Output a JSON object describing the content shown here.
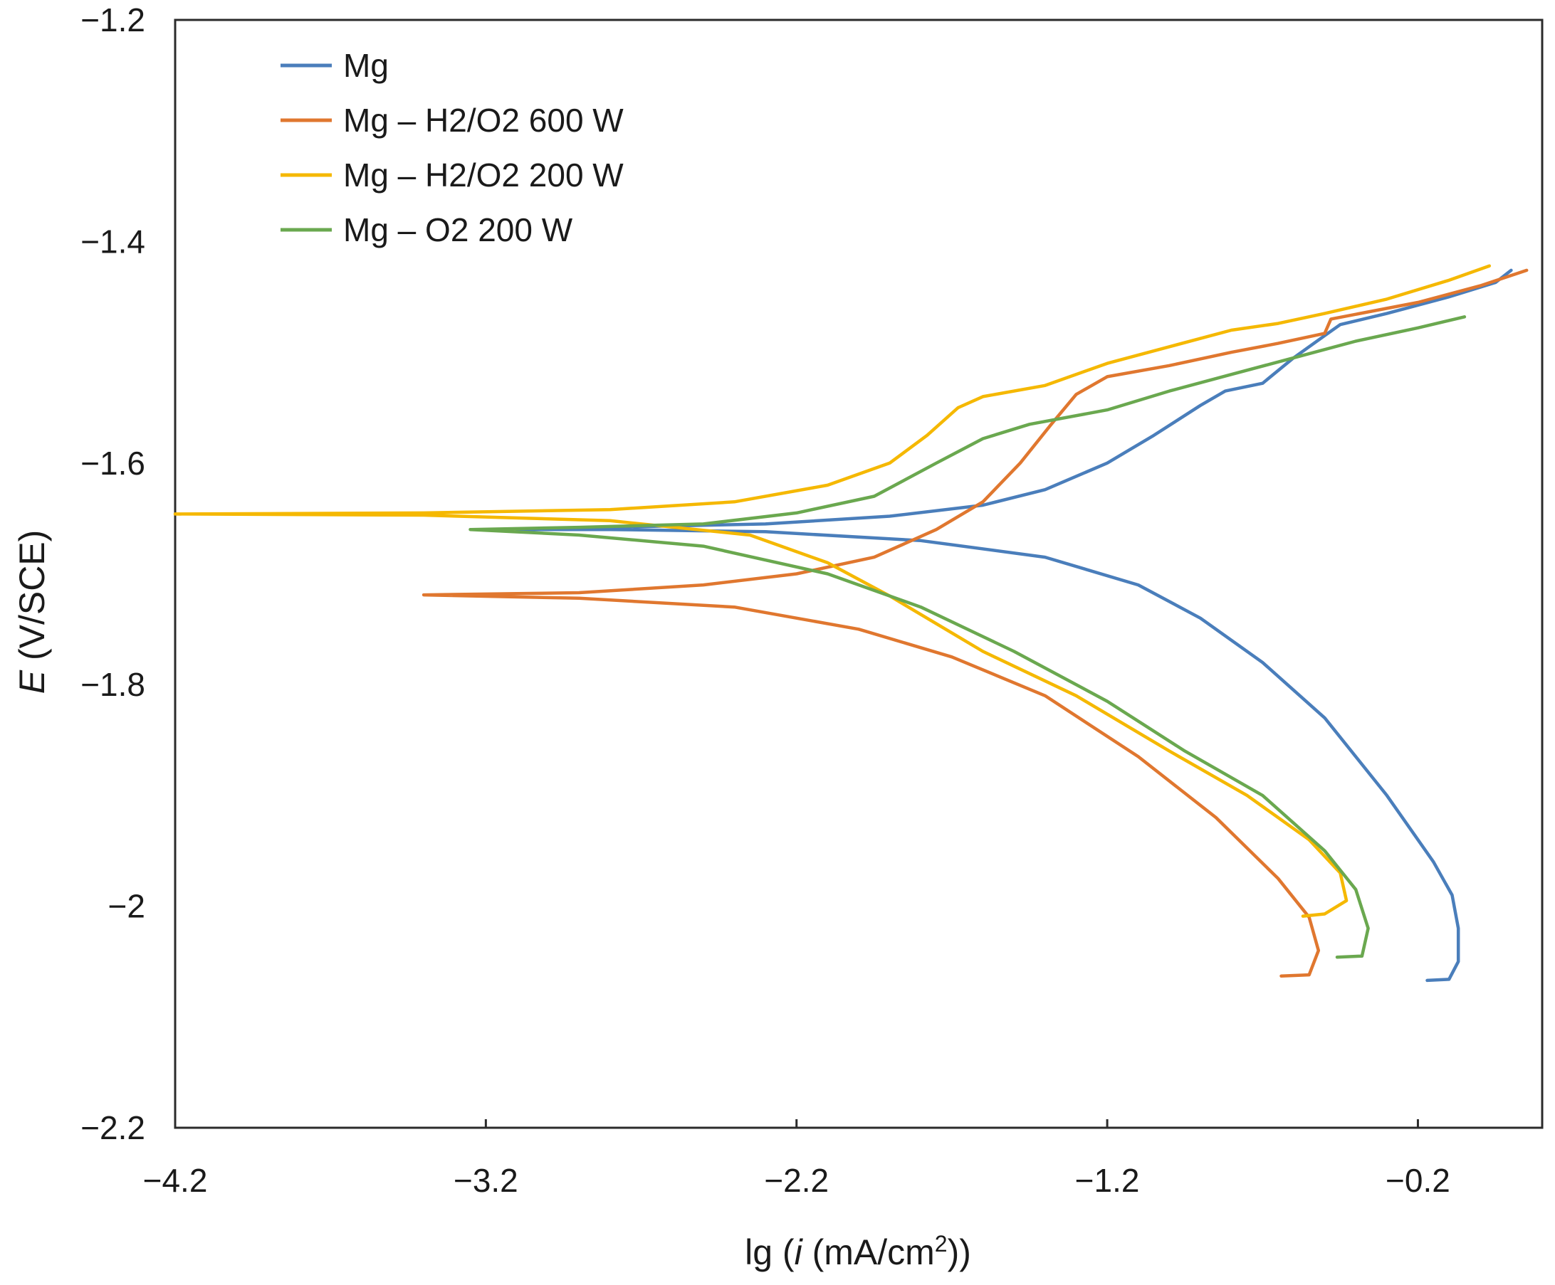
{
  "chart_data": {
    "type": "line",
    "title": "",
    "xlabel": {
      "prefix": "lg (",
      "italic": "i",
      "middle": " (mA/cm",
      "superscript": "2",
      "suffix": "))"
    },
    "ylabel": {
      "italic": "E",
      "rest": " (V/SCE)"
    },
    "xlim": [
      -4.2,
      0.2
    ],
    "ylim": [
      -2.2,
      -1.2
    ],
    "xticks": [
      {
        "value": -4.2,
        "label": "−4.2"
      },
      {
        "value": -3.2,
        "label": "−3.2"
      },
      {
        "value": -2.2,
        "label": "−2.2"
      },
      {
        "value": -1.2,
        "label": "−1.2"
      },
      {
        "value": -0.2,
        "label": "−0.2"
      }
    ],
    "yticks": [
      {
        "value": -1.2,
        "label": "−1.2"
      },
      {
        "value": -1.4,
        "label": "−1.4"
      },
      {
        "value": -1.6,
        "label": "−1.6"
      },
      {
        "value": -1.8,
        "label": "−1.8"
      },
      {
        "value": -2.0,
        "label": "−2"
      },
      {
        "value": -2.2,
        "label": "−2.2"
      }
    ],
    "grid": false,
    "legend_position": "top-left",
    "series": [
      {
        "name": "Mg",
        "color": "#4a7ebb",
        "points": [
          [
            -0.17,
            -2.067
          ],
          [
            -0.1,
            -2.066
          ],
          [
            -0.07,
            -2.05
          ],
          [
            -0.07,
            -2.02
          ],
          [
            -0.09,
            -1.99
          ],
          [
            -0.15,
            -1.96
          ],
          [
            -0.3,
            -1.9
          ],
          [
            -0.5,
            -1.83
          ],
          [
            -0.7,
            -1.78
          ],
          [
            -0.9,
            -1.74
          ],
          [
            -1.1,
            -1.71
          ],
          [
            -1.4,
            -1.685
          ],
          [
            -1.8,
            -1.67
          ],
          [
            -2.3,
            -1.662
          ],
          [
            -2.8,
            -1.66
          ],
          [
            -3.1,
            -1.66
          ],
          [
            -2.8,
            -1.658
          ],
          [
            -2.3,
            -1.655
          ],
          [
            -1.9,
            -1.648
          ],
          [
            -1.6,
            -1.638
          ],
          [
            -1.4,
            -1.624
          ],
          [
            -1.2,
            -1.6
          ],
          [
            -1.05,
            -1.575
          ],
          [
            -0.9,
            -1.548
          ],
          [
            -0.82,
            -1.535
          ],
          [
            -0.7,
            -1.528
          ],
          [
            -0.6,
            -1.505
          ],
          [
            -0.5,
            -1.485
          ],
          [
            -0.45,
            -1.475
          ],
          [
            -0.3,
            -1.465
          ],
          [
            -0.1,
            -1.45
          ],
          [
            0.05,
            -1.437
          ],
          [
            0.1,
            -1.426
          ]
        ]
      },
      {
        "name": "Mg – H2/O2 600 W",
        "color": "#e0772f",
        "points": [
          [
            -0.64,
            -2.063
          ],
          [
            -0.55,
            -2.062
          ],
          [
            -0.52,
            -2.04
          ],
          [
            -0.55,
            -2.01
          ],
          [
            -0.65,
            -1.975
          ],
          [
            -0.85,
            -1.92
          ],
          [
            -1.1,
            -1.865
          ],
          [
            -1.4,
            -1.81
          ],
          [
            -1.7,
            -1.775
          ],
          [
            -2.0,
            -1.75
          ],
          [
            -2.4,
            -1.73
          ],
          [
            -2.9,
            -1.722
          ],
          [
            -3.4,
            -1.719
          ],
          [
            -2.9,
            -1.717
          ],
          [
            -2.5,
            -1.71
          ],
          [
            -2.2,
            -1.7
          ],
          [
            -1.95,
            -1.685
          ],
          [
            -1.75,
            -1.66
          ],
          [
            -1.6,
            -1.635
          ],
          [
            -1.48,
            -1.6
          ],
          [
            -1.38,
            -1.565
          ],
          [
            -1.3,
            -1.538
          ],
          [
            -1.2,
            -1.522
          ],
          [
            -1.0,
            -1.512
          ],
          [
            -0.8,
            -1.5
          ],
          [
            -0.65,
            -1.492
          ],
          [
            -0.5,
            -1.483
          ],
          [
            -0.48,
            -1.47
          ],
          [
            -0.2,
            -1.455
          ],
          [
            0.0,
            -1.44
          ],
          [
            0.15,
            -1.426
          ]
        ]
      },
      {
        "name": "Mg – H2/O2 200 W",
        "color": "#f5b800",
        "points": [
          [
            -0.57,
            -2.009
          ],
          [
            -0.5,
            -2.007
          ],
          [
            -0.43,
            -1.995
          ],
          [
            -0.45,
            -1.97
          ],
          [
            -0.55,
            -1.94
          ],
          [
            -0.75,
            -1.9
          ],
          [
            -1.0,
            -1.86
          ],
          [
            -1.3,
            -1.81
          ],
          [
            -1.6,
            -1.77
          ],
          [
            -1.9,
            -1.72
          ],
          [
            -2.1,
            -1.69
          ],
          [
            -2.35,
            -1.665
          ],
          [
            -2.8,
            -1.652
          ],
          [
            -3.4,
            -1.647
          ],
          [
            -4.2,
            -1.646
          ],
          [
            -3.4,
            -1.645
          ],
          [
            -2.8,
            -1.642
          ],
          [
            -2.4,
            -1.635
          ],
          [
            -2.1,
            -1.62
          ],
          [
            -1.9,
            -1.6
          ],
          [
            -1.78,
            -1.575
          ],
          [
            -1.68,
            -1.55
          ],
          [
            -1.6,
            -1.54
          ],
          [
            -1.4,
            -1.53
          ],
          [
            -1.2,
            -1.51
          ],
          [
            -1.0,
            -1.495
          ],
          [
            -0.8,
            -1.48
          ],
          [
            -0.65,
            -1.474
          ],
          [
            -0.5,
            -1.465
          ],
          [
            -0.3,
            -1.452
          ],
          [
            -0.1,
            -1.435
          ],
          [
            0.03,
            -1.422
          ]
        ]
      },
      {
        "name": "Mg – O2 200 W",
        "color": "#6aa84f",
        "points": [
          [
            -0.46,
            -2.046
          ],
          [
            -0.38,
            -2.045
          ],
          [
            -0.36,
            -2.02
          ],
          [
            -0.4,
            -1.985
          ],
          [
            -0.5,
            -1.95
          ],
          [
            -0.7,
            -1.9
          ],
          [
            -0.95,
            -1.86
          ],
          [
            -1.2,
            -1.815
          ],
          [
            -1.5,
            -1.77
          ],
          [
            -1.8,
            -1.73
          ],
          [
            -2.1,
            -1.7
          ],
          [
            -2.5,
            -1.675
          ],
          [
            -2.9,
            -1.665
          ],
          [
            -3.25,
            -1.66
          ],
          [
            -2.9,
            -1.658
          ],
          [
            -2.5,
            -1.655
          ],
          [
            -2.2,
            -1.645
          ],
          [
            -1.95,
            -1.63
          ],
          [
            -1.75,
            -1.6
          ],
          [
            -1.6,
            -1.578
          ],
          [
            -1.45,
            -1.565
          ],
          [
            -1.2,
            -1.552
          ],
          [
            -1.0,
            -1.535
          ],
          [
            -0.8,
            -1.52
          ],
          [
            -0.6,
            -1.505
          ],
          [
            -0.4,
            -1.49
          ],
          [
            -0.2,
            -1.478
          ],
          [
            -0.05,
            -1.468
          ]
        ]
      }
    ]
  }
}
